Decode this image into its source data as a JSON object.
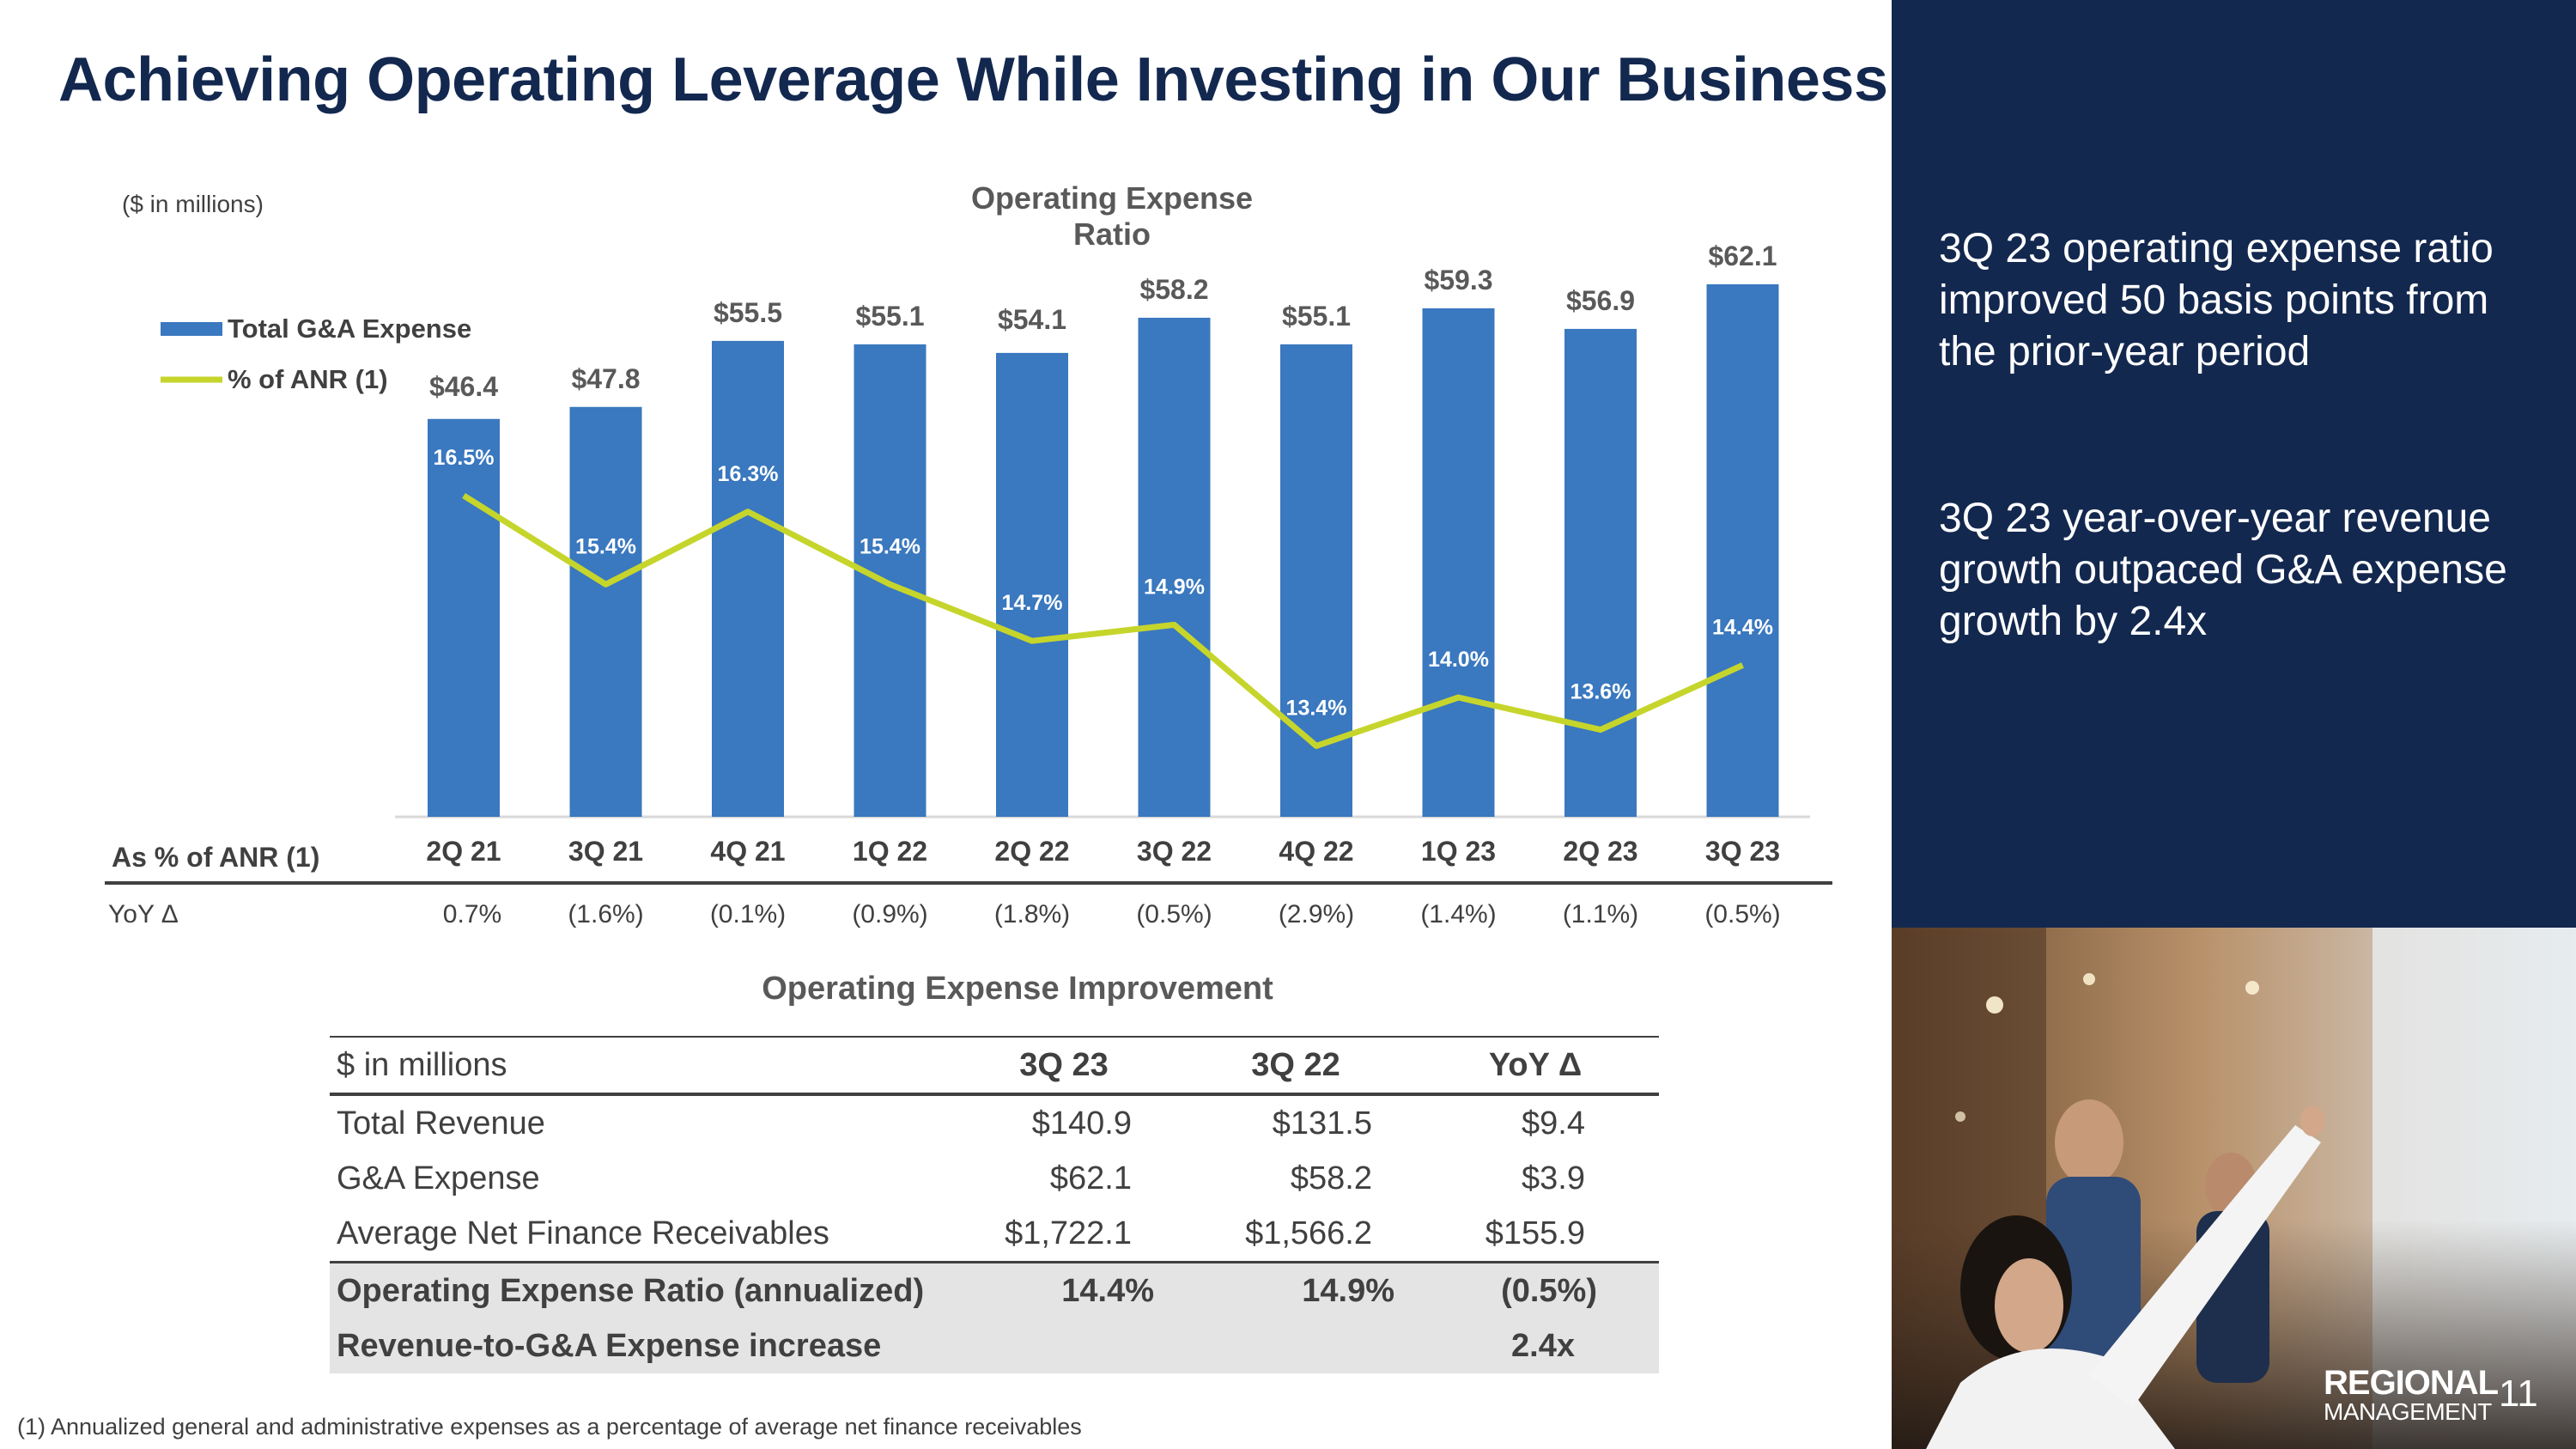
{
  "page": {
    "title": "Achieving Operating Leverage While Investing in Our Business",
    "units_note": "($ in millions)",
    "footnote": "(1) Annualized general and administrative expenses as a percentage of average net finance receivables",
    "page_number": "11"
  },
  "colors": {
    "navy": "#13284f",
    "bar": "#3a78bf",
    "line": "#c6d52b"
  },
  "chart_data": {
    "type": "bar",
    "title": "Operating Expense Ratio",
    "categories": [
      "2Q 21",
      "3Q 21",
      "4Q 21",
      "1Q 22",
      "2Q 22",
      "3Q 22",
      "4Q 22",
      "1Q 23",
      "2Q 23",
      "3Q 23"
    ],
    "ylim": [
      0,
      62.1
    ],
    "line_ylim": [
      0.12,
      0.17
    ],
    "legend_position": "top-left",
    "grid": false,
    "series": [
      {
        "name": "Total G&A Expense",
        "type": "bar",
        "values": [
          46.4,
          47.8,
          55.5,
          55.1,
          54.1,
          58.2,
          55.1,
          59.3,
          56.9,
          62.1
        ],
        "labels": [
          "$46.4",
          "$47.8",
          "$55.5",
          "$55.1",
          "$54.1",
          "$58.2",
          "$55.1",
          "$59.3",
          "$56.9",
          "$62.1"
        ]
      },
      {
        "name": "% of ANR (1)",
        "type": "line",
        "values": [
          0.165,
          0.154,
          0.163,
          0.154,
          0.147,
          0.149,
          0.134,
          0.14,
          0.136,
          0.144
        ],
        "labels": [
          "16.5%",
          "15.4%",
          "16.3%",
          "15.4%",
          "14.7%",
          "14.9%",
          "13.4%",
          "14.0%",
          "13.6%",
          "14.4%"
        ]
      }
    ],
    "row_label_anr": "As % of ANR (1)",
    "row_label_yoy": "YoY Δ",
    "yoy": [
      "0.7%",
      "(1.6%)",
      "(0.1%)",
      "(0.9%)",
      "(1.8%)",
      "(0.5%)",
      "(2.9%)",
      "(1.4%)",
      "(1.1%)",
      "(0.5%)"
    ]
  },
  "table": {
    "title": "Operating Expense Improvement",
    "headers": [
      "$ in millions",
      "3Q 23",
      "3Q 22",
      "YoY Δ"
    ],
    "rows": [
      [
        "Total Revenue",
        "$140.9",
        "$131.5",
        "$9.4"
      ],
      [
        "G&A Expense",
        "$62.1",
        "$58.2",
        "$3.9"
      ],
      [
        "Average Net Finance Receivables",
        "$1,722.1",
        "$1,566.2",
        "$155.9"
      ]
    ],
    "highlight_rows": [
      [
        "Operating Expense Ratio (annualized)",
        "14.4%",
        "14.9%",
        "(0.5%)"
      ],
      [
        "Revenue-to-G&A Expense increase",
        "",
        "",
        "2.4x"
      ]
    ]
  },
  "side": {
    "point1": "3Q 23 operating expense ratio improved 50 basis points from the prior-year period",
    "point2": "3Q 23 year-over-year revenue growth outpaced G&A expense growth by 2.4x"
  },
  "logo": {
    "line1": "REGIONAL",
    "line2": "MANAGEMENT"
  }
}
